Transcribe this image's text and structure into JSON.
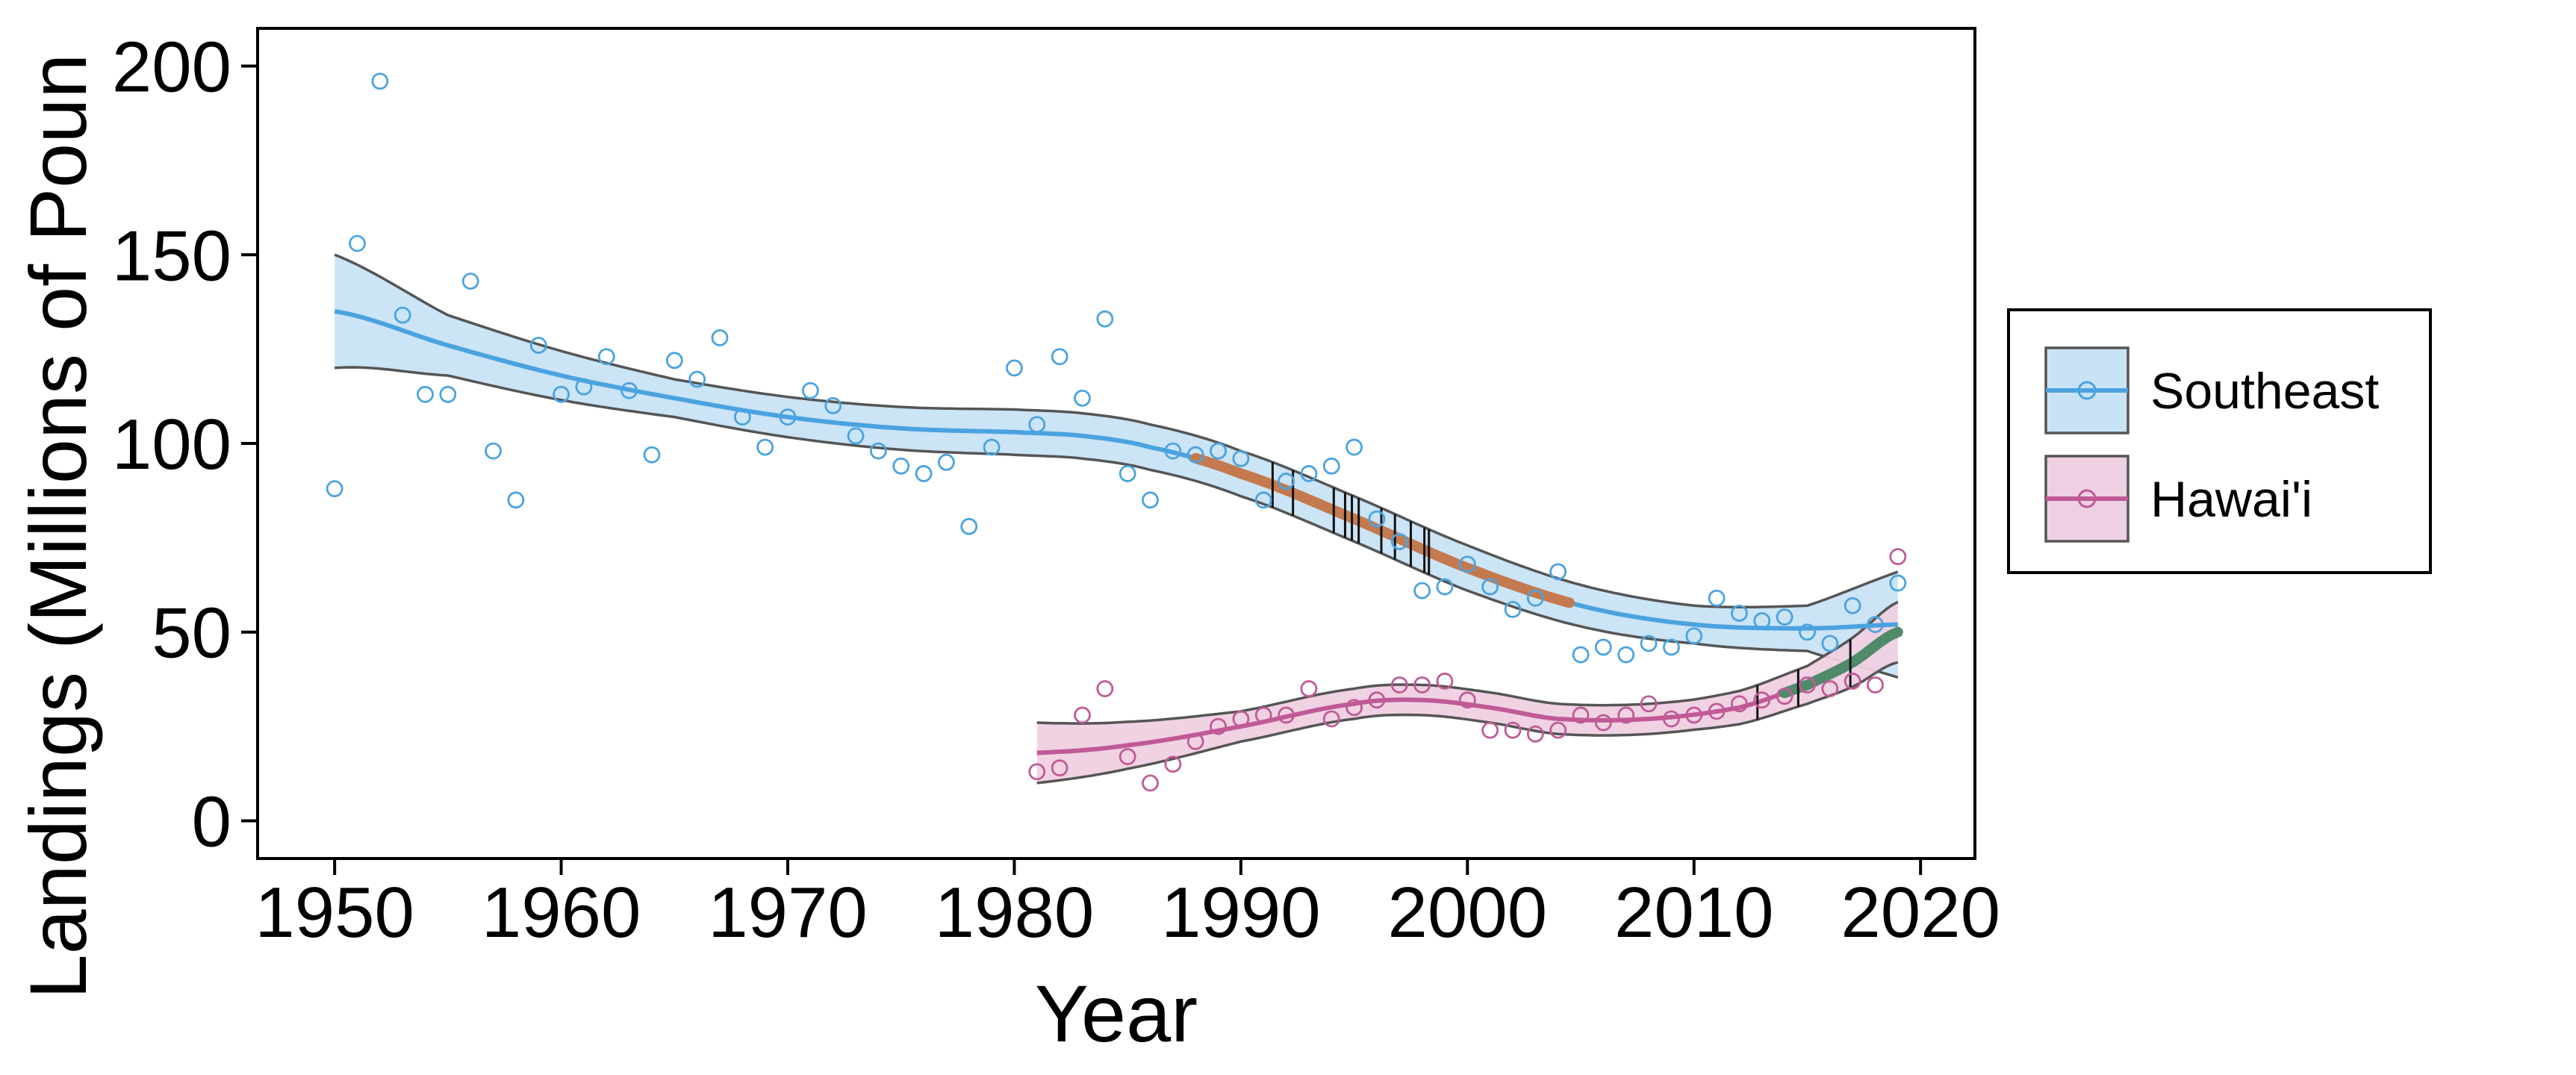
{
  "chart_data": {
    "type": "scatter",
    "xlabel": "Year",
    "ylabel": "Landings (Millions of Poun",
    "xlim": [
      1946.6,
      2022.4
    ],
    "ylim": [
      -10,
      210
    ],
    "xticks": [
      1950,
      1960,
      1970,
      1980,
      1990,
      2000,
      2010,
      2020
    ],
    "yticks": [
      0,
      50,
      100,
      150,
      200
    ],
    "grid": false,
    "legend_position": "right",
    "series": [
      {
        "name": "Southeast",
        "color": "#4aa3df",
        "fill": "#c8e3f6",
        "points": [
          [
            1950,
            88
          ],
          [
            1951,
            153
          ],
          [
            1952,
            196
          ],
          [
            1953,
            134
          ],
          [
            1954,
            113
          ],
          [
            1955,
            113
          ],
          [
            1956,
            143
          ],
          [
            1957,
            98
          ],
          [
            1958,
            85
          ],
          [
            1959,
            126
          ],
          [
            1960,
            113
          ],
          [
            1961,
            115
          ],
          [
            1962,
            123
          ],
          [
            1963,
            114
          ],
          [
            1964,
            97
          ],
          [
            1965,
            122
          ],
          [
            1966,
            117
          ],
          [
            1967,
            128
          ],
          [
            1968,
            107
          ],
          [
            1969,
            99
          ],
          [
            1970,
            107
          ],
          [
            1971,
            114
          ],
          [
            1972,
            110
          ],
          [
            1973,
            102
          ],
          [
            1974,
            98
          ],
          [
            1975,
            94
          ],
          [
            1976,
            92
          ],
          [
            1977,
            95
          ],
          [
            1978,
            78
          ],
          [
            1979,
            99
          ],
          [
            1980,
            120
          ],
          [
            1981,
            105
          ],
          [
            1982,
            123
          ],
          [
            1983,
            112
          ],
          [
            1984,
            133
          ],
          [
            1985,
            92
          ],
          [
            1986,
            85
          ],
          [
            1987,
            98
          ],
          [
            1988,
            97
          ],
          [
            1989,
            98
          ],
          [
            1990,
            96
          ],
          [
            1991,
            85
          ],
          [
            1992,
            90
          ],
          [
            1993,
            92
          ],
          [
            1994,
            94
          ],
          [
            1995,
            99
          ],
          [
            1996,
            80
          ],
          [
            1997,
            74
          ],
          [
            1998,
            61
          ],
          [
            1999,
            62
          ],
          [
            2000,
            68
          ],
          [
            2001,
            62
          ],
          [
            2002,
            56
          ],
          [
            2003,
            59
          ],
          [
            2004,
            66
          ],
          [
            2005,
            44
          ],
          [
            2006,
            46
          ],
          [
            2007,
            44
          ],
          [
            2008,
            47
          ],
          [
            2009,
            46
          ],
          [
            2010,
            49
          ],
          [
            2011,
            59
          ],
          [
            2012,
            55
          ],
          [
            2013,
            53
          ],
          [
            2014,
            54
          ],
          [
            2015,
            50
          ],
          [
            2016,
            47
          ],
          [
            2017,
            57
          ],
          [
            2018,
            52
          ],
          [
            2019,
            63
          ]
        ],
        "trend": [
          [
            1950,
            135
          ],
          [
            1955,
            126
          ],
          [
            1960,
            118
          ],
          [
            1965,
            112
          ],
          [
            1970,
            107
          ],
          [
            1975,
            104
          ],
          [
            1980,
            103
          ],
          [
            1983,
            102
          ],
          [
            1986,
            99
          ],
          [
            1990,
            92
          ],
          [
            1995,
            80
          ],
          [
            2000,
            67
          ],
          [
            2005,
            57
          ],
          [
            2010,
            52
          ],
          [
            2015,
            51
          ],
          [
            2019,
            52
          ]
        ],
        "ci_half_width": [
          [
            1950,
            15
          ],
          [
            1955,
            8
          ],
          [
            1965,
            5
          ],
          [
            1980,
            6
          ],
          [
            1990,
            6
          ],
          [
            2000,
            6
          ],
          [
            2010,
            5
          ],
          [
            2015,
            6
          ],
          [
            2019,
            14
          ]
        ]
      },
      {
        "name": "Hawai'i",
        "color": "#c05a96",
        "fill": "#efd0e2",
        "points": [
          [
            1981,
            13
          ],
          [
            1982,
            14
          ],
          [
            1983,
            28
          ],
          [
            1984,
            35
          ],
          [
            1985,
            17
          ],
          [
            1986,
            10
          ],
          [
            1987,
            15
          ],
          [
            1988,
            21
          ],
          [
            1989,
            25
          ],
          [
            1990,
            27
          ],
          [
            1991,
            28
          ],
          [
            1992,
            28
          ],
          [
            1993,
            35
          ],
          [
            1994,
            27
          ],
          [
            1995,
            30
          ],
          [
            1996,
            32
          ],
          [
            1997,
            36
          ],
          [
            1998,
            36
          ],
          [
            1999,
            37
          ],
          [
            2000,
            32
          ],
          [
            2001,
            24
          ],
          [
            2002,
            24
          ],
          [
            2003,
            23
          ],
          [
            2004,
            24
          ],
          [
            2005,
            28
          ],
          [
            2006,
            26
          ],
          [
            2007,
            28
          ],
          [
            2008,
            31
          ],
          [
            2009,
            27
          ],
          [
            2010,
            28
          ],
          [
            2011,
            29
          ],
          [
            2012,
            31
          ],
          [
            2013,
            32
          ],
          [
            2014,
            33
          ],
          [
            2015,
            36
          ],
          [
            2016,
            35
          ],
          [
            2017,
            37
          ],
          [
            2018,
            36
          ],
          [
            2019,
            70
          ]
        ],
        "trend": [
          [
            1981,
            18
          ],
          [
            1985,
            20
          ],
          [
            1990,
            25
          ],
          [
            1995,
            31
          ],
          [
            1998,
            32
          ],
          [
            2001,
            30
          ],
          [
            2004,
            27
          ],
          [
            2008,
            27
          ],
          [
            2012,
            30
          ],
          [
            2015,
            36
          ],
          [
            2017,
            42
          ],
          [
            2019,
            50
          ]
        ],
        "ci_half_width": [
          [
            1981,
            8
          ],
          [
            1990,
            4
          ],
          [
            2000,
            4
          ],
          [
            2010,
            4
          ],
          [
            2015,
            5
          ],
          [
            2019,
            8
          ]
        ]
      }
    ],
    "highlights": [
      {
        "color": "#c47a4e",
        "x_range": [
          1988,
          2004.5
        ],
        "series": 0
      },
      {
        "color": "#4f8a6b",
        "x_range": [
          2014,
          2019
        ],
        "series": 1
      }
    ],
    "vertical_marks": [
      {
        "series": 0,
        "x": [
          1991.4,
          1992.3,
          1994.1,
          1994.6,
          1994.9,
          1995.2,
          1996.2,
          1996.8,
          1997.5,
          1998.1,
          1998.3
        ]
      },
      {
        "series": 1,
        "x": [
          2012.8,
          2014.6,
          2016.9
        ]
      }
    ]
  }
}
